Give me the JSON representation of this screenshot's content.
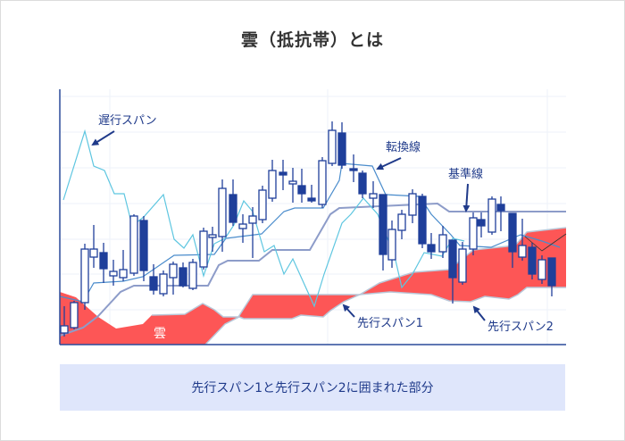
{
  "title": "雲（抵抗帯）とは",
  "labels": {
    "chikou": "遅行スパン",
    "tenkan": "転換線",
    "kijun": "基準線",
    "senkou1": "先行スパン1",
    "senkou2": "先行スパン2",
    "cloud": "雲"
  },
  "caption": "先行スパン1と先行スパン2に囲まれた部分",
  "colors": {
    "cloud": "#fd5656",
    "candle": "#1f3f9a",
    "chikou": "#5ec6e0",
    "tenkan": "#4a8ccc",
    "kijun": "#8d9cc9",
    "axis": "#2a4a9a",
    "caption_bg": "#dfe6fb"
  }
}
